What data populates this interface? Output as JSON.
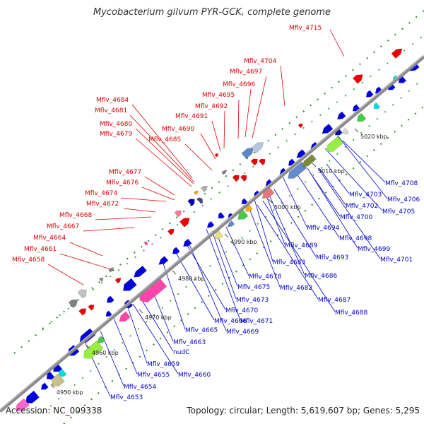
{
  "title": "Mycobacterium gilvum PYR-GCK, complete genome",
  "footer": {
    "accession": "Accession: NC_009338",
    "topology": "Topology: circular; Length: 5,619,607 bp; Genes: 5,295"
  },
  "colors": {
    "forward_label": "#dd0000",
    "reverse_label": "#0000cc",
    "backbone": "#8a8a8a"
  },
  "ticks": [
    "4950 kbp",
    "4960 kbp",
    "4970 kbp",
    "4980 kbp",
    "4990 kbp",
    "5000 kbp",
    "5010 kbp",
    "5020 kbp"
  ],
  "forward_labels": [
    "Mflv_4715",
    "Mflv_4704",
    "Mflv_4697",
    "Mflv_4696",
    "Mflv_4695",
    "Mflv_4692",
    "Mflv_4691",
    "Mflv_4690",
    "Mflv_4685",
    "Mflv_4684",
    "Mflv_4681",
    "Mflv_4680",
    "Mflv_4679",
    "Mflv_4677",
    "Mflv_4676",
    "Mflv_4674",
    "Mflv_4672",
    "Mflv_4668",
    "Mflv_4667",
    "Mflv_4664",
    "Mflv_4661",
    "Mflv_4658"
  ],
  "reverse_labels": [
    "Mflv_4708",
    "Mflv_4706",
    "Mflv_4705",
    "Mflv_4703",
    "Mflv_4702",
    "Mflv_4700",
    "Mflv_4694",
    "Mflv_4698",
    "Mflv_4699",
    "Mflv_4701",
    "Mflv_4689",
    "Mflv_4693",
    "Mflv_4683",
    "Mflv_4686",
    "Mflv_4678",
    "Mflv_4675",
    "Mflv_4682",
    "Mflv_4673",
    "Mflv_4687",
    "Mflv_4670",
    "Mflv_4688",
    "Mflv_4666",
    "Mflv_4671",
    "Mflv_4665",
    "Mflv_4669",
    "Mflv_4663",
    "nudC",
    "Mflv_4659",
    "Mflv_4655",
    "Mflv_4660",
    "Mflv_4654",
    "Mflv_4653"
  ]
}
